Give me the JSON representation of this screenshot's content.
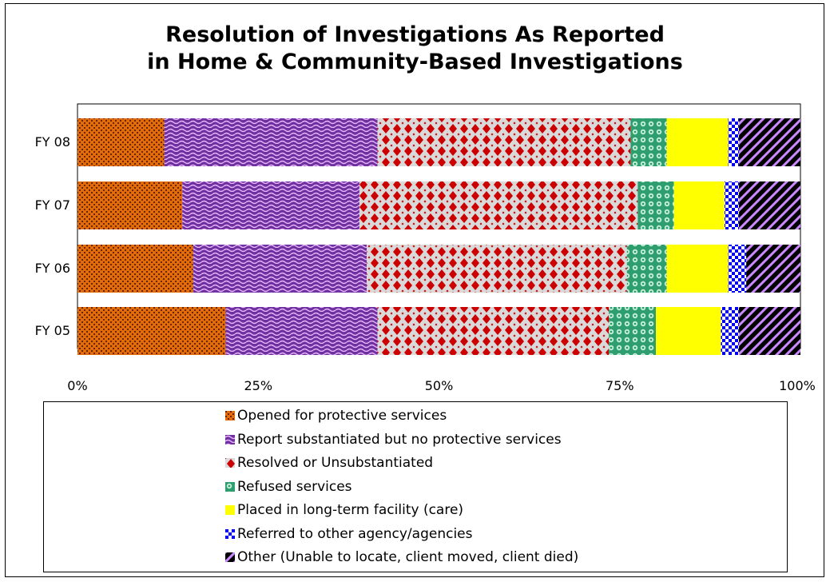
{
  "chart_data": {
    "type": "bar",
    "orientation": "horizontal",
    "stacked": true,
    "percent_stacked": true,
    "title": [
      "Resolution of Investigations As Reported",
      "in Home & Community-Based Investigations"
    ],
    "categories": [
      "FY 08",
      "FY 07",
      "FY 06",
      "FY 05"
    ],
    "x_ticks": [
      "0%",
      "25%",
      "50%",
      "75%",
      "100%"
    ],
    "xlim": [
      0,
      100
    ],
    "grid": false,
    "legend_position": "bottom",
    "series": [
      {
        "name": "Opened for protective services",
        "color": "#e36c0a",
        "pattern": "weave",
        "values": [
          12,
          14.5,
          16,
          20.5
        ]
      },
      {
        "name": "Report substantiated but no protective services",
        "color": "#7030a0",
        "pattern": "wave",
        "values": [
          29.5,
          24.5,
          24,
          21
        ]
      },
      {
        "name": "Resolved or Unsubstantiated",
        "color": "#cc0000",
        "pattern": "diamond",
        "values": [
          35,
          38.5,
          36,
          32
        ]
      },
      {
        "name": "Refused services",
        "color": "#2e9e6e",
        "pattern": "circles",
        "values": [
          5,
          5,
          5.5,
          6.5
        ]
      },
      {
        "name": "Placed in long-term facility (care)",
        "color": "#ffff00",
        "pattern": "solid",
        "values": [
          8.5,
          7,
          8.5,
          9
        ]
      },
      {
        "name": "Referred to other agency/agencies",
        "color": "#0000ee",
        "pattern": "checker",
        "values": [
          1.5,
          2,
          2.5,
          2.5
        ]
      },
      {
        "name": "Other (Unable to locate, client moved, client died)",
        "color": "#cc88ff",
        "pattern": "stripes",
        "values": [
          8.5,
          8.5,
          7.5,
          8.5
        ]
      }
    ]
  }
}
